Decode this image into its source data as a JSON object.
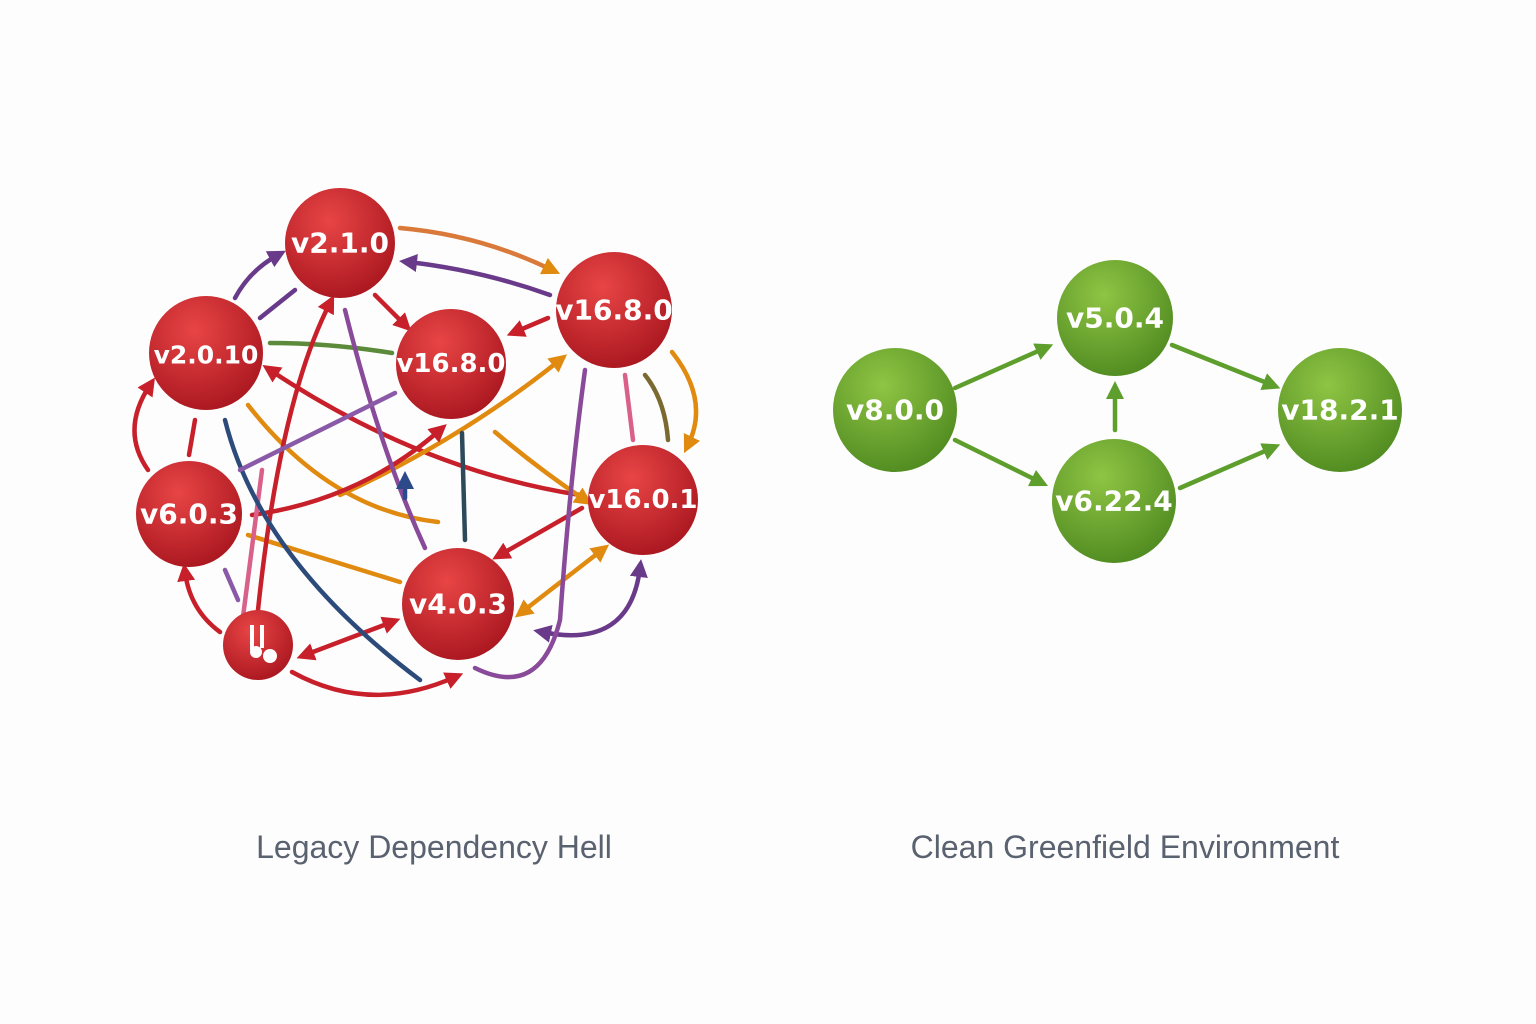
{
  "left": {
    "caption": "Legacy Dependency Hell",
    "nodes": [
      {
        "label": "v2.1.0"
      },
      {
        "label": "v2.0.10"
      },
      {
        "label": "v16.8.0"
      },
      {
        "label": "v16.8.0"
      },
      {
        "label": "v6.0.3"
      },
      {
        "label": "v16.0.1"
      },
      {
        "label": "v4.0.3"
      }
    ]
  },
  "right": {
    "caption": "Clean Greenfield Environment",
    "nodes": [
      {
        "label": "v8.0.0"
      },
      {
        "label": "v5.0.4"
      },
      {
        "label": "v6.22.4"
      },
      {
        "label": "v18.2.1"
      }
    ]
  }
}
